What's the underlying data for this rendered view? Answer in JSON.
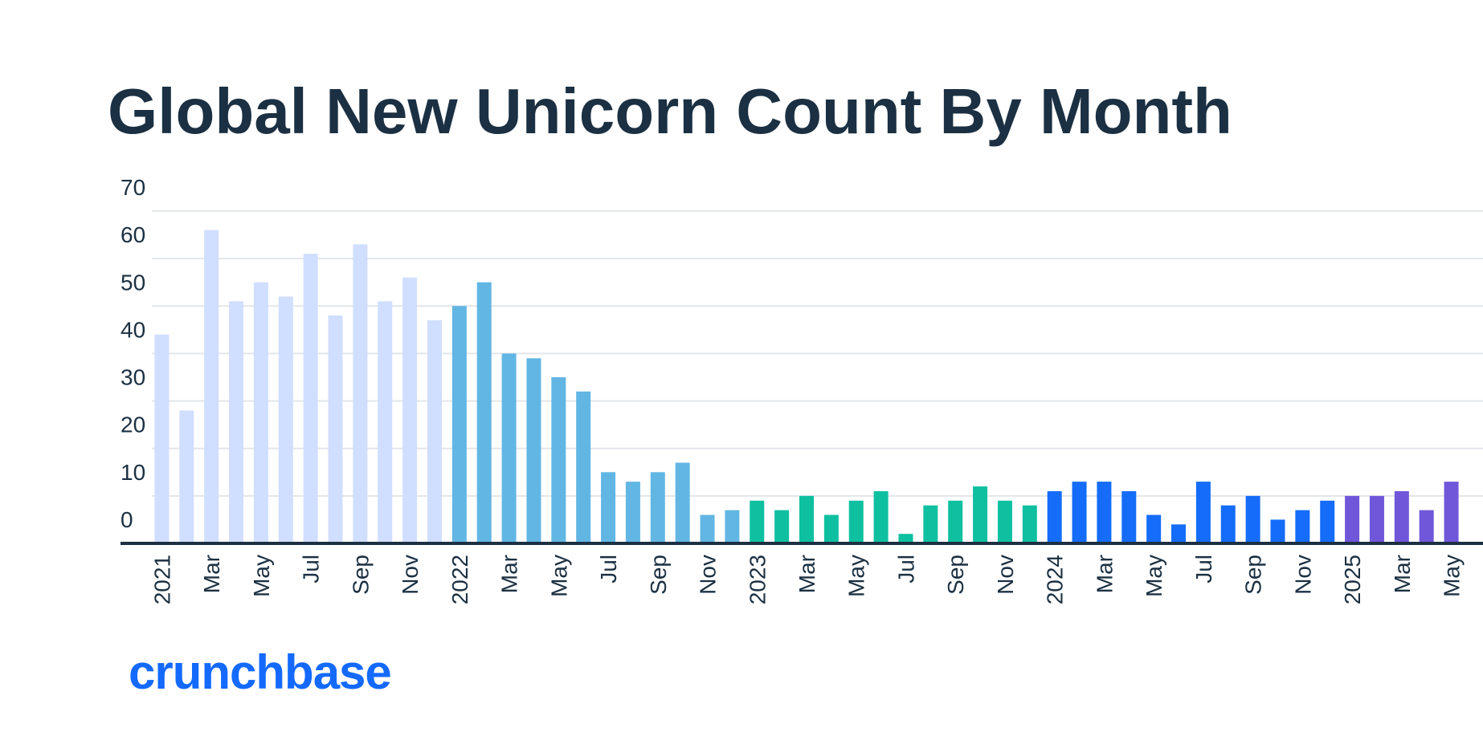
{
  "chart_data": {
    "type": "bar",
    "title": "Global New Unicorn Count By Month",
    "categories": [
      "2021",
      null,
      "Mar",
      null,
      "May",
      null,
      "Jul",
      null,
      "Sep",
      null,
      "Nov",
      null,
      "2022",
      null,
      "Mar",
      null,
      "May",
      null,
      "Jul",
      null,
      "Sep",
      null,
      "Nov",
      null,
      "2023",
      null,
      "Mar",
      null,
      "May",
      null,
      "Jul",
      null,
      "Sep",
      null,
      "Nov",
      null,
      "2024",
      null,
      "Mar",
      null,
      "May",
      null,
      "Jul",
      null,
      "Sep",
      null,
      "Nov",
      null,
      "2025",
      null,
      "Mar",
      null,
      "May"
    ],
    "values": [
      44,
      28,
      66,
      51,
      55,
      52,
      61,
      48,
      63,
      51,
      56,
      47,
      50,
      55,
      40,
      39,
      35,
      32,
      15,
      13,
      15,
      17,
      6,
      7,
      9,
      7,
      10,
      6,
      9,
      11,
      2,
      8,
      9,
      12,
      9,
      8,
      11,
      13,
      13,
      11,
      6,
      4,
      13,
      8,
      10,
      5,
      7,
      9,
      10,
      10,
      11,
      7,
      13
    ],
    "colors": [
      "#d0deff",
      "#d0deff",
      "#d0deff",
      "#d0deff",
      "#d0deff",
      "#d0deff",
      "#d0deff",
      "#d0deff",
      "#d0deff",
      "#d0deff",
      "#d0deff",
      "#d0deff",
      "#62b6e4",
      "#62b6e4",
      "#62b6e4",
      "#62b6e4",
      "#62b6e4",
      "#62b6e4",
      "#62b6e4",
      "#62b6e4",
      "#62b6e4",
      "#62b6e4",
      "#62b6e4",
      "#62b6e4",
      "#0ec0a0",
      "#0ec0a0",
      "#0ec0a0",
      "#0ec0a0",
      "#0ec0a0",
      "#0ec0a0",
      "#0ec0a0",
      "#0ec0a0",
      "#0ec0a0",
      "#0ec0a0",
      "#0ec0a0",
      "#0ec0a0",
      "#156cf8",
      "#156cf8",
      "#156cf8",
      "#156cf8",
      "#156cf8",
      "#156cf8",
      "#156cf8",
      "#156cf8",
      "#156cf8",
      "#156cf8",
      "#156cf8",
      "#156cf8",
      "#7057d9",
      "#7057d9",
      "#7057d9",
      "#7057d9",
      "#7057d9"
    ],
    "ylim": [
      0,
      70
    ],
    "yticks": [
      0,
      10,
      20,
      30,
      40,
      50,
      60,
      70
    ],
    "grid": true
  },
  "logo": "crunchbase"
}
